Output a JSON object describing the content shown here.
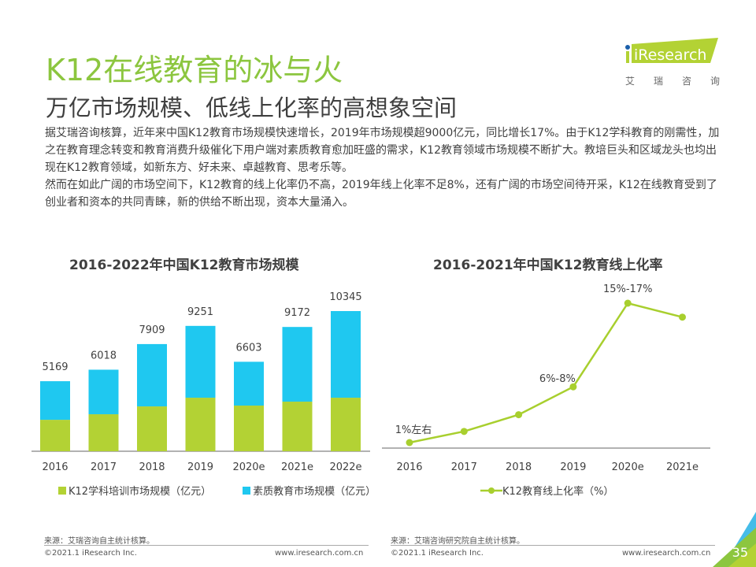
{
  "header": {
    "title": "K12在线教育的冰与火",
    "subtitle": "万亿市场规模、低线上化率的高想象空间",
    "logo_text": "iResearch",
    "logo_cn": [
      "艾",
      "瑞",
      "咨",
      "询"
    ]
  },
  "body": {
    "paragraph1": "据艾瑞咨询核算，近年来中国K12教育市场规模快速增长，2019年市场规模超9000亿元，同比增长17%。由于K12学科教育的刚需性，加之在教育理念转变和教育消费升级催化下用户端对素质教育愈加旺盛的需求，K12教育领域市场规模不断扩大。教培巨头和区域龙头也均出现在K12教育领域，如新东方、好未来、卓越教育、思考乐等。",
    "paragraph2": "然而在如此广阔的市场空间下，K12教育的线上化率仍不高，2019年线上化率不足8%，还有广阔的市场空间待开采，K12在线教育受到了创业者和资本的共同青睐，新的供给不断出现，资本大量涌入。"
  },
  "colors": {
    "green": "#b3d234",
    "blue": "#1fc8f0",
    "title_green": "#8cc63f",
    "line_green": "#a8cf2e"
  },
  "chart_data": [
    {
      "type": "bar",
      "stacked": true,
      "title": "2016-2022年中国K12教育市场规模",
      "categories": [
        "2016",
        "2017",
        "2018",
        "2019",
        "2020e",
        "2021e",
        "2022e"
      ],
      "totals": [
        5169,
        6018,
        7909,
        9251,
        6603,
        9172,
        10345
      ],
      "series": [
        {
          "name": "K12学科培训市场规模（亿元）",
          "values": [
            2320,
            2730,
            3310,
            3950,
            3370,
            3660,
            3950
          ]
        },
        {
          "name": "素质教育市场规模（亿元）",
          "values": [
            2849,
            3288,
            4599,
            5301,
            3233,
            5512,
            6395
          ]
        }
      ],
      "xlabel": "",
      "ylabel": "",
      "ylim": [
        0,
        10345
      ],
      "grid": false,
      "legend": "bottom"
    },
    {
      "type": "line",
      "title": "2016-2021年中国K12教育线上化率",
      "categories": [
        "2016",
        "2017",
        "2018",
        "2019",
        "2020e",
        "2021e"
      ],
      "series": [
        {
          "name": "K12教育线上化率（%）",
          "values": [
            1,
            2.2,
            4,
            7,
            16,
            14.5
          ]
        }
      ],
      "data_labels": [
        "1%左右",
        "",
        "",
        "6%-8%",
        "15%-17%",
        ""
      ],
      "xlabel": "",
      "ylabel": "",
      "ylim": [
        0,
        16
      ],
      "grid": false,
      "legend": "bottom"
    }
  ],
  "footer": {
    "left_source": "来源：艾瑞咨询自主统计核算。",
    "right_source": "来源：艾瑞咨询研究院自主统计核算。",
    "copyright": "©2021.1 iResearch Inc.",
    "website": "www.iresearch.com.cn",
    "page_number": "35"
  }
}
